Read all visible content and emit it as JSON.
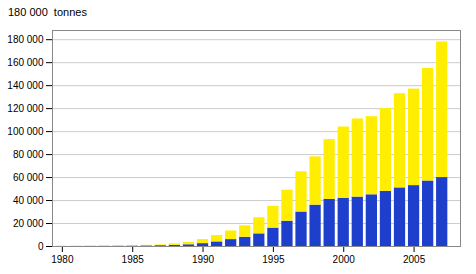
{
  "chart_data": {
    "type": "bar",
    "stacked": true,
    "annotations": [
      "180 000  tonnes"
    ],
    "x": [
      1980,
      1981,
      1982,
      1983,
      1984,
      1985,
      1986,
      1987,
      1988,
      1989,
      1990,
      1991,
      1992,
      1993,
      1994,
      1995,
      1996,
      1997,
      1998,
      1999,
      2000,
      2001,
      2002,
      2003,
      2004,
      2005,
      2006,
      2007
    ],
    "series": [
      {
        "color": "#1e3fcc",
        "values": [
          50,
          50,
          100,
          150,
          200,
          300,
          500,
          700,
          1000,
          1500,
          2500,
          4000,
          6000,
          8000,
          11000,
          16000,
          22000,
          30000,
          36000,
          41000,
          42000,
          43000,
          45000,
          48000,
          51000,
          53000,
          57000,
          60000
        ]
      },
      {
        "color": "#ffee00",
        "values": [
          100,
          100,
          150,
          200,
          250,
          300,
          500,
          700,
          1200,
          2000,
          3500,
          5500,
          7500,
          10000,
          14000,
          19000,
          27000,
          35000,
          42000,
          52000,
          62000,
          68000,
          68000,
          72000,
          82000,
          84000,
          98000,
          118000
        ]
      }
    ],
    "xlim": [
      1979.3,
      2008.3
    ],
    "xticks": [
      1980,
      1985,
      1990,
      1995,
      2000,
      2005
    ],
    "ylim": [
      0,
      188000
    ],
    "yticks": [
      0,
      {
        "value": 20000,
        "label": "20 000"
      },
      {
        "value": 40000,
        "label": "40 000"
      },
      {
        "value": 60000,
        "label": "60 000"
      },
      {
        "value": 80000,
        "label": "80 000"
      },
      {
        "value": 100000,
        "label": "100 000"
      },
      {
        "value": 120000,
        "label": "120 000"
      },
      {
        "value": 140000,
        "label": "140 000"
      },
      {
        "value": 160000,
        "label": "160 000"
      },
      {
        "value": 180000,
        "label": "180 000"
      }
    ],
    "grid": true
  }
}
